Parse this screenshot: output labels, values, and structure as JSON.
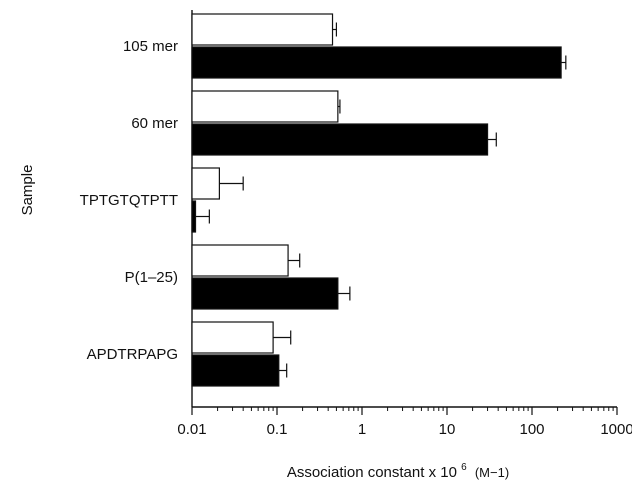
{
  "chart_data": {
    "type": "bar",
    "orientation": "horizontal",
    "x_scale": "log",
    "xlim": [
      0.01,
      1000
    ],
    "x_ticks": [
      "0.01",
      "0.1",
      "1",
      "10",
      "100",
      "1000"
    ],
    "categories": [
      "105 mer",
      "60 mer",
      "TPTGTQTPTT",
      "P(1–25)",
      "APDTRPAPG"
    ],
    "series": [
      {
        "fill": "#ffffff",
        "values": [
          0.45,
          0.52,
          0.021,
          0.135,
          0.09
        ],
        "errors_upper": [
          0.5,
          0.55,
          0.04,
          0.185,
          0.145
        ]
      },
      {
        "fill": "#000000",
        "values": [
          220,
          30,
          0.011,
          0.52,
          0.105
        ],
        "errors_upper": [
          250,
          38,
          0.016,
          0.72,
          0.13
        ]
      }
    ],
    "ylabel": "Sample",
    "xlabel": "Association constant x 10",
    "xlabel_sup": "6",
    "xlabel_unit": "(M−1)",
    "grid": false,
    "legend": "none"
  }
}
